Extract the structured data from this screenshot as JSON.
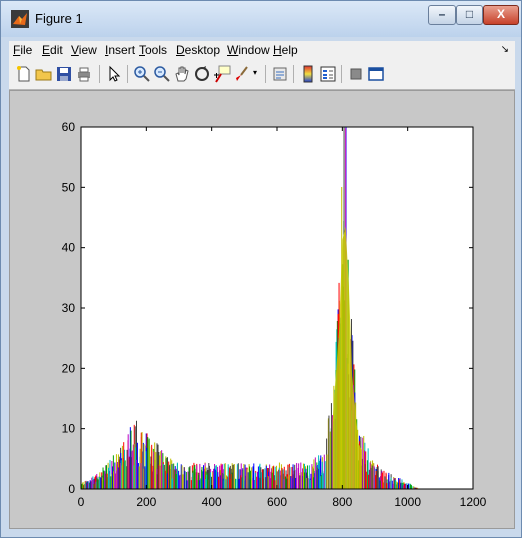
{
  "window": {
    "title": "Figure 1",
    "colors": {
      "frame": "#c9d9ec",
      "close_button": "#c7412a",
      "client_bg": "#c8c8c8"
    }
  },
  "menubar": {
    "items": [
      {
        "label": "File",
        "underline": "F"
      },
      {
        "label": "Edit",
        "underline": "E"
      },
      {
        "label": "View",
        "underline": "V"
      },
      {
        "label": "Insert",
        "underline": "I"
      },
      {
        "label": "Tools",
        "underline": "T"
      },
      {
        "label": "Desktop",
        "underline": "D"
      },
      {
        "label": "Window",
        "underline": "W"
      },
      {
        "label": "Help",
        "underline": "H"
      }
    ]
  },
  "toolbar": {
    "icons": [
      "new-figure-icon",
      "open-file-icon",
      "save-icon",
      "print-icon",
      "edit-plot-icon",
      "zoom-in-icon",
      "zoom-out-icon",
      "pan-icon",
      "rotate-3d-icon",
      "data-cursor-icon",
      "brush-icon",
      "link-plot-icon",
      "colorbar-icon",
      "legend-icon",
      "hide-plot-tools-icon",
      "show-plot-tools-icon"
    ]
  },
  "chart_data": {
    "type": "bar",
    "description_of_series": "many overlapping multi-colored histogram series",
    "xlim": [
      0,
      1200
    ],
    "ylim": [
      0,
      60
    ],
    "xticks": [
      "0",
      "200",
      "400",
      "600",
      "800",
      "1000",
      "1200"
    ],
    "yticks": [
      "0",
      "10",
      "20",
      "30",
      "40",
      "50",
      "60"
    ],
    "grid": false,
    "title": "",
    "xlabel": "",
    "ylabel": "",
    "colors": [
      "#0000ff",
      "#00a000",
      "#ff0000",
      "#00bfbf",
      "#bf00bf",
      "#bfbf00",
      "#404040"
    ],
    "envelope": {
      "x": [
        0,
        40,
        80,
        120,
        150,
        170,
        200,
        230,
        260,
        300,
        400,
        500,
        600,
        700,
        740,
        770,
        790,
        800,
        810,
        820,
        830,
        850,
        880,
        920,
        960,
        1000,
        1030
      ],
      "y": [
        1,
        2,
        4,
        7,
        10,
        11,
        9,
        7,
        5,
        4,
        4,
        4,
        4,
        4,
        6,
        15,
        35,
        55,
        58,
        45,
        25,
        10,
        6,
        3,
        2,
        1,
        0
      ]
    }
  }
}
